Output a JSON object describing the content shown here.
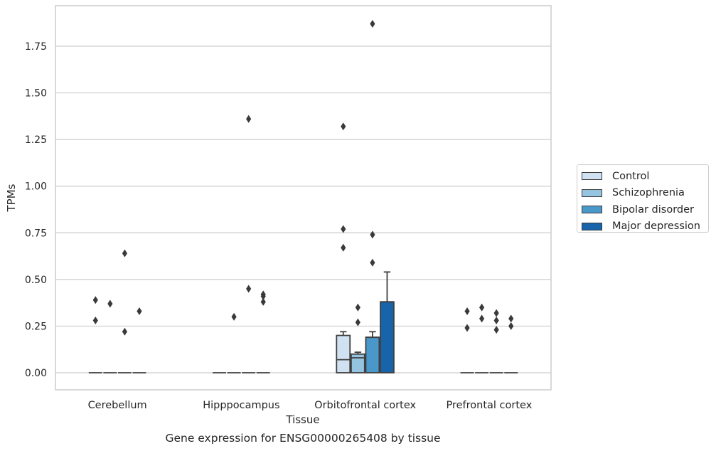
{
  "chart_data": {
    "type": "boxplot",
    "xlabel": "Tissue",
    "ylabel": "TPMs",
    "caption": "Gene expression for ENSG00000265408 by tissue",
    "categories": [
      "Cerebellum",
      "Hipppocampus",
      "Orbitofrontal cortex",
      "Prefrontal cortex"
    ],
    "ylim": [
      -0.09,
      1.97
    ],
    "yticks": [
      0.0,
      0.25,
      0.5,
      0.75,
      1.0,
      1.25,
      1.5,
      1.75
    ],
    "ytick_labels": [
      "0.00",
      "0.25",
      "0.50",
      "0.75",
      "1.00",
      "1.25",
      "1.50",
      "1.75"
    ],
    "grid": true,
    "legend_position": "right",
    "series": [
      {
        "name": "Control",
        "color": "#d0e1f2",
        "boxes": [
          {
            "q1": 0,
            "median": 0,
            "q3": 0,
            "whisker_low": 0,
            "whisker_high": 0,
            "outliers": [
              0.39,
              0.28
            ]
          },
          {
            "q1": 0,
            "median": 0,
            "q3": 0,
            "whisker_low": 0,
            "whisker_high": 0,
            "outliers": []
          },
          {
            "q1": 0,
            "median": 0.07,
            "q3": 0.2,
            "whisker_low": 0,
            "whisker_high": 0.22,
            "outliers": [
              1.32,
              0.77,
              0.67
            ]
          },
          {
            "q1": 0,
            "median": 0,
            "q3": 0,
            "whisker_low": 0,
            "whisker_high": 0,
            "outliers": [
              0.33,
              0.24
            ]
          }
        ]
      },
      {
        "name": "Schizophrenia",
        "color": "#94c4df",
        "boxes": [
          {
            "q1": 0,
            "median": 0,
            "q3": 0,
            "whisker_low": 0,
            "whisker_high": 0,
            "outliers": [
              0.37
            ]
          },
          {
            "q1": 0,
            "median": 0,
            "q3": 0,
            "whisker_low": 0,
            "whisker_high": 0,
            "outliers": [
              0.3
            ]
          },
          {
            "q1": 0,
            "median": 0.08,
            "q3": 0.1,
            "whisker_low": 0,
            "whisker_high": 0.11,
            "outliers": [
              0.35,
              0.27
            ]
          },
          {
            "q1": 0,
            "median": 0,
            "q3": 0,
            "whisker_low": 0,
            "whisker_high": 0,
            "outliers": [
              0.35,
              0.29
            ]
          }
        ]
      },
      {
        "name": "Bipolar disorder",
        "color": "#4a98c9",
        "boxes": [
          {
            "q1": 0,
            "median": 0,
            "q3": 0,
            "whisker_low": 0,
            "whisker_high": 0,
            "outliers": [
              0.64,
              0.22
            ]
          },
          {
            "q1": 0,
            "median": 0,
            "q3": 0,
            "whisker_low": 0,
            "whisker_high": 0,
            "outliers": [
              1.36,
              0.45
            ]
          },
          {
            "q1": 0,
            "median": 0.19,
            "q3": 0.19,
            "whisker_low": 0,
            "whisker_high": 0.22,
            "outliers": [
              1.87,
              0.74,
              0.59
            ]
          },
          {
            "q1": 0,
            "median": 0,
            "q3": 0,
            "whisker_low": 0,
            "whisker_high": 0,
            "outliers": [
              0.32,
              0.28,
              0.23
            ]
          }
        ]
      },
      {
        "name": "Major depression",
        "color": "#1764ab",
        "boxes": [
          {
            "q1": 0,
            "median": 0,
            "q3": 0,
            "whisker_low": 0,
            "whisker_high": 0,
            "outliers": [
              0.33
            ]
          },
          {
            "q1": 0,
            "median": 0,
            "q3": 0,
            "whisker_low": 0,
            "whisker_high": 0,
            "outliers": [
              0.42,
              0.41,
              0.38
            ]
          },
          {
            "q1": 0,
            "median": 0.38,
            "q3": 0.38,
            "whisker_low": 0,
            "whisker_high": 0.54,
            "outliers": []
          },
          {
            "q1": 0,
            "median": 0,
            "q3": 0,
            "whisker_low": 0,
            "whisker_high": 0,
            "outliers": [
              0.29,
              0.25
            ]
          }
        ]
      }
    ]
  }
}
